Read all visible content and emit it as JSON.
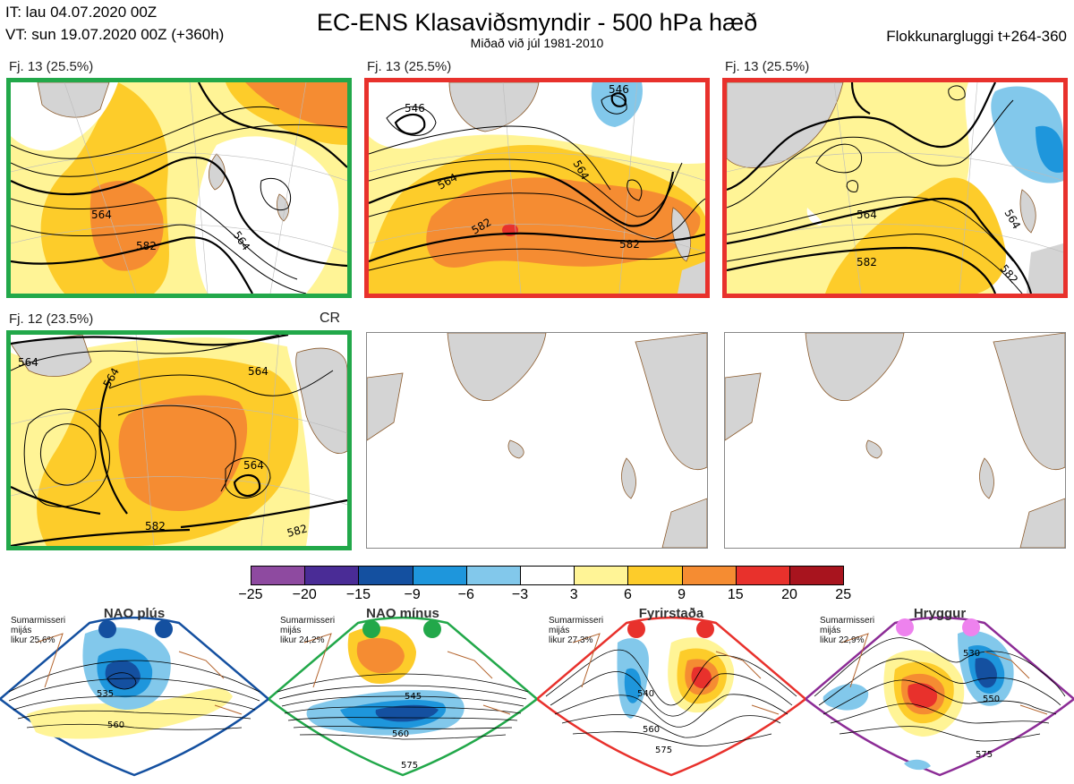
{
  "header": {
    "it_line": "IT: lau 04.07.2020 00Z",
    "vt_line": "VT: sun 19.07.2020 00Z  (+360h)",
    "title": "EC-ENS Klasaviðsmyndir - 500 hPa hæð",
    "subtitle": "Miðað við júl 1981-2010",
    "window": "Flokkunargluggi t+264-360"
  },
  "panels": [
    {
      "label": "Fj. 13 (25.5%)",
      "border_color": "#22a84a",
      "contours": [
        "564",
        "582",
        "564"
      ]
    },
    {
      "label": "Fj. 13 (25.5%)",
      "border_color": "#e8312c",
      "contours": [
        "546",
        "546",
        "564",
        "564",
        "582",
        "582"
      ]
    },
    {
      "label": "Fj. 13 (25.5%)",
      "border_color": "#e8312c",
      "contours": [
        "564",
        "564",
        "582",
        "582"
      ]
    },
    {
      "label": "Fj. 12 (23.5%)",
      "border_color": "#22a84a",
      "tag": "CR",
      "contours": [
        "564",
        "564",
        "564",
        "564",
        "582",
        "582"
      ]
    }
  ],
  "colorbar": {
    "colors": [
      "#8e4aa0",
      "#4a2c96",
      "#1450a0",
      "#1e96dc",
      "#82c8eb",
      "#ffffff",
      "#fff496",
      "#fdcc2a",
      "#f58c32",
      "#e8312c",
      "#a8141e"
    ],
    "ticks": [
      "−25",
      "−20",
      "−15",
      "−9",
      "−6",
      "−3",
      "3",
      "6",
      "9",
      "15",
      "20",
      "25"
    ]
  },
  "regimes": [
    {
      "name": "NAO plús",
      "info": [
        "Sumarmisseri",
        "mijás",
        "likur 25,6%"
      ],
      "color": "#1450a0",
      "contours": [
        "535",
        "560"
      ]
    },
    {
      "name": "NAO mínus",
      "info": [
        "Sumarmisseri",
        "mijás",
        "likur 24,2%"
      ],
      "color": "#22a84a",
      "contours": [
        "545",
        "560",
        "575"
      ]
    },
    {
      "name": "Fyrirstaða",
      "info": [
        "Sumarmisseri",
        "mijás",
        "likur 27,3%"
      ],
      "color": "#e8312c",
      "contours": [
        "540",
        "560",
        "575"
      ]
    },
    {
      "name": "Hryggur",
      "info": [
        "Sumarmisseri",
        "mijás",
        "likur 22,9%"
      ],
      "color": "#8c2c96",
      "dot_color": "#ee82ee",
      "contours": [
        "530",
        "550",
        "575"
      ]
    }
  ]
}
